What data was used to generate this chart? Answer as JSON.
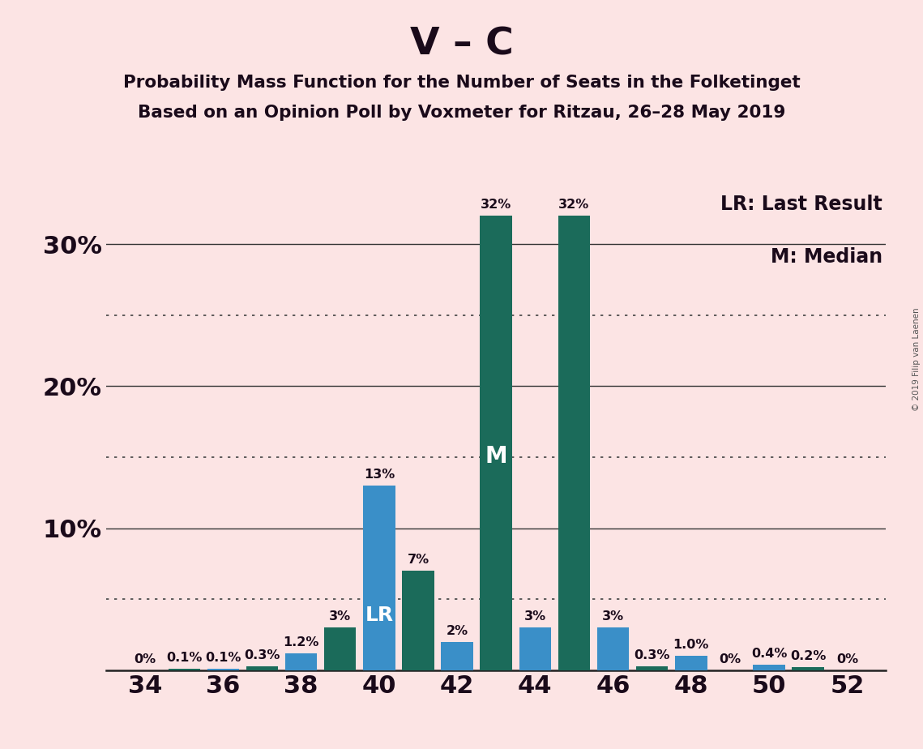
{
  "title_main": "V – C",
  "title_sub1": "Probability Mass Function for the Number of Seats in the Folketinget",
  "title_sub2": "Based on an Opinion Poll by Voxmeter for Ritzau, 26–28 May 2019",
  "copyright": "© 2019 Filip van Laenen",
  "seats": [
    34,
    35,
    36,
    37,
    38,
    39,
    40,
    41,
    42,
    43,
    44,
    45,
    46,
    47,
    48,
    49,
    50,
    51,
    52
  ],
  "values": [
    0.0,
    0.1,
    0.1,
    0.3,
    1.2,
    3.0,
    13.0,
    7.0,
    2.0,
    32.0,
    3.0,
    32.0,
    3.0,
    0.3,
    1.0,
    0.0,
    0.4,
    0.2,
    0.0
  ],
  "labels": [
    "0%",
    "0.1%",
    "0.1%",
    "0.3%",
    "1.2%",
    "3%",
    "13%",
    "7%",
    "2%",
    "32%",
    "3%",
    "32%",
    "3%",
    "0.3%",
    "1.0%",
    "0%",
    "0.4%",
    "0.2%",
    "0%"
  ],
  "bar_blue": "#3a8fc8",
  "bar_teal": "#1b6b5a",
  "background_color": "#fce4e4",
  "lr_seat": 40,
  "median_seat": 43,
  "lr_label": "LR",
  "median_label": "M",
  "ylim": [
    0,
    34
  ],
  "legend_lr": "LR: Last Result",
  "legend_m": "M: Median",
  "copyright_text": "© 2019 Filip van Laenen"
}
